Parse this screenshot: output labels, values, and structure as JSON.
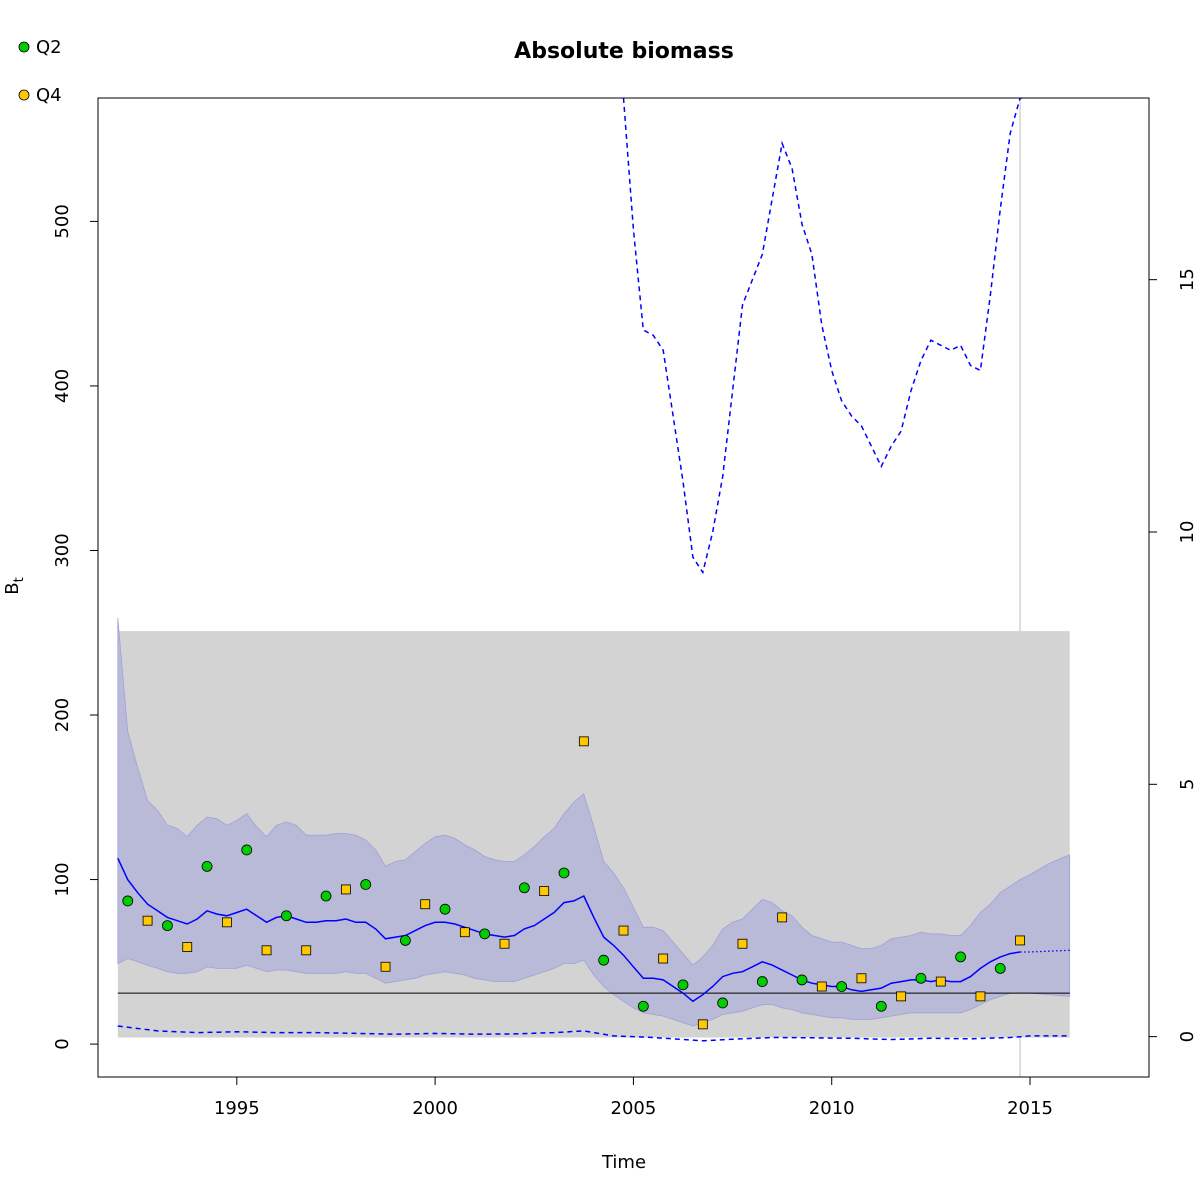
{
  "chart_data": {
    "type": "line",
    "title": "Absolute biomass",
    "xlabel": "Time",
    "ylabel": "B",
    "ylabel_subscript": "t",
    "xlim": [
      1991.5,
      2018.0
    ],
    "ylim": [
      -20,
      575
    ],
    "y2lim": [
      -0.8,
      18.6
    ],
    "x_ticks": [
      1995,
      2000,
      2005,
      2010,
      2015
    ],
    "y_ticks": [
      0,
      100,
      200,
      300,
      400,
      500
    ],
    "y2_ticks": [
      0,
      5,
      10,
      15
    ],
    "legend": {
      "placement": "top-left-outside",
      "entries": [
        {
          "label": "Q2",
          "color": "#00cd00",
          "shape": "circle"
        },
        {
          "label": "Q4",
          "color": "#ffc800",
          "shape": "square"
        }
      ]
    },
    "colors": {
      "biomass_line": "#0000ff",
      "ci_band": "#b6b6d8",
      "prior_region": "#d3d3d3",
      "reference_line": "#000000",
      "vline": "#d3d3d3"
    },
    "prior_region": {
      "x": [
        1992.0,
        2016.0
      ],
      "y": [
        4,
        251
      ]
    },
    "reference_line_y": 31,
    "vline_x": 2014.75,
    "series": [
      {
        "name": "Q2",
        "kind": "points",
        "x": [
          1992.25,
          1993.25,
          1994.25,
          1995.25,
          1996.25,
          1997.25,
          1998.25,
          1999.25,
          2000.25,
          2001.25,
          2002.25,
          2003.25,
          2004.25,
          2005.25,
          2006.25,
          2007.25,
          2008.25,
          2009.25,
          2010.25,
          2011.25,
          2012.25,
          2013.25,
          2014.25
        ],
        "values": [
          87,
          72,
          108,
          118,
          78,
          90,
          97,
          63,
          82,
          67,
          95,
          104,
          51,
          23,
          36,
          25,
          38,
          39,
          35,
          23,
          40,
          53,
          46
        ]
      },
      {
        "name": "Q4",
        "kind": "points",
        "x": [
          1992.75,
          1993.75,
          1994.75,
          1995.75,
          1996.75,
          1997.75,
          1998.75,
          1999.75,
          2000.75,
          2001.75,
          2002.75,
          2003.75,
          2004.75,
          2005.75,
          2006.75,
          2007.75,
          2008.75,
          2009.75,
          2010.75,
          2011.75,
          2012.75,
          2013.75,
          2014.75
        ],
        "values": [
          75,
          59,
          74,
          57,
          57,
          94,
          47,
          85,
          68,
          61,
          93,
          184,
          69,
          52,
          12,
          61,
          77,
          35,
          40,
          29,
          38,
          29,
          63
        ]
      },
      {
        "kind": "estimate",
        "x": [
          1992.0,
          1992.25,
          1992.5,
          1992.75,
          1993.0,
          1993.25,
          1993.5,
          1993.75,
          1994.0,
          1994.25,
          1994.5,
          1994.75,
          1995.0,
          1995.25,
          1995.5,
          1995.75,
          1996.0,
          1996.25,
          1996.5,
          1996.75,
          1997.0,
          1997.25,
          1997.5,
          1997.75,
          1998.0,
          1998.25,
          1998.5,
          1998.75,
          1999.0,
          1999.25,
          1999.5,
          1999.75,
          2000.0,
          2000.25,
          2000.5,
          2000.75,
          2001.0,
          2001.25,
          2001.5,
          2001.75,
          2002.0,
          2002.25,
          2002.5,
          2002.75,
          2003.0,
          2003.25,
          2003.5,
          2003.75,
          2004.0,
          2004.25,
          2004.5,
          2004.75,
          2005.0,
          2005.25,
          2005.5,
          2005.75,
          2006.0,
          2006.25,
          2006.5,
          2006.75,
          2007.0,
          2007.25,
          2007.5,
          2007.75,
          2008.0,
          2008.25,
          2008.5,
          2008.75,
          2009.0,
          2009.25,
          2009.5,
          2009.75,
          2010.0,
          2010.25,
          2010.5,
          2010.75,
          2011.0,
          2011.25,
          2011.5,
          2011.75,
          2012.0,
          2012.25,
          2012.5,
          2012.75,
          2013.0,
          2013.25,
          2013.5,
          2013.75,
          2014.0,
          2014.25,
          2014.5,
          2014.75
        ],
        "values": [
          113,
          100,
          92,
          85,
          81,
          77,
          75,
          73,
          76,
          81,
          79,
          78,
          80,
          82,
          78,
          74,
          77,
          78,
          76,
          74,
          74,
          75,
          75,
          76,
          74,
          74,
          70,
          64,
          65,
          66,
          69,
          72,
          74,
          74,
          73,
          71,
          69,
          67,
          66,
          65,
          66,
          70,
          72,
          76,
          80,
          86,
          87,
          90,
          77,
          65,
          60,
          54,
          47,
          40,
          40,
          39,
          35,
          31,
          26,
          30,
          35,
          41,
          43,
          44,
          47,
          50,
          48,
          45,
          42,
          39,
          37,
          36,
          35,
          35,
          33,
          32,
          33,
          34,
          37,
          38,
          39,
          39,
          38,
          39,
          38,
          38,
          41,
          46,
          50,
          53,
          55,
          56
        ]
      },
      {
        "kind": "ci_lower",
        "x": [
          1992.0,
          1992.25,
          1992.5,
          1992.75,
          1993.0,
          1993.25,
          1993.5,
          1993.75,
          1994.0,
          1994.25,
          1994.5,
          1994.75,
          1995.0,
          1995.25,
          1995.5,
          1995.75,
          1996.0,
          1996.25,
          1996.5,
          1996.75,
          1997.0,
          1997.25,
          1997.5,
          1997.75,
          1998.0,
          1998.25,
          1998.5,
          1998.75,
          1999.0,
          1999.25,
          1999.5,
          1999.75,
          2000.0,
          2000.25,
          2000.5,
          2000.75,
          2001.0,
          2001.25,
          2001.5,
          2001.75,
          2002.0,
          2002.25,
          2002.5,
          2002.75,
          2003.0,
          2003.25,
          2003.5,
          2003.75,
          2004.0,
          2004.25,
          2004.5,
          2004.75,
          2005.0,
          2005.25,
          2005.5,
          2005.75,
          2006.0,
          2006.25,
          2006.5,
          2006.75,
          2007.0,
          2007.25,
          2007.5,
          2007.75,
          2008.0,
          2008.25,
          2008.5,
          2008.75,
          2009.0,
          2009.25,
          2009.5,
          2009.75,
          2010.0,
          2010.25,
          2010.5,
          2010.75,
          2011.0,
          2011.25,
          2011.5,
          2011.75,
          2012.0,
          2012.25,
          2012.5,
          2012.75,
          2013.0,
          2013.25,
          2013.5,
          2013.75,
          2014.0,
          2014.25,
          2014.5,
          2014.75,
          2015.0,
          2015.5,
          2016.0
        ],
        "values": [
          49,
          52,
          50,
          48,
          46,
          44,
          43,
          43,
          44,
          47,
          46,
          46,
          46,
          48,
          46,
          44,
          45,
          45,
          44,
          43,
          43,
          43,
          43,
          44,
          43,
          43,
          40,
          37,
          38,
          39,
          40,
          42,
          43,
          44,
          43,
          42,
          40,
          39,
          38,
          38,
          38,
          40,
          42,
          44,
          46,
          49,
          49,
          51,
          42,
          35,
          30,
          26,
          22,
          19,
          18,
          17,
          15,
          13,
          11,
          13,
          15,
          18,
          19,
          20,
          22,
          24,
          24,
          22,
          21,
          19,
          18,
          17,
          16,
          16,
          15,
          15,
          15,
          16,
          17,
          18,
          19,
          19,
          19,
          19,
          19,
          19,
          21,
          24,
          27,
          29,
          31,
          31,
          31,
          30,
          29
        ]
      },
      {
        "kind": "ci_upper",
        "x": [
          1992.0,
          1992.25,
          1992.5,
          1992.75,
          1993.0,
          1993.25,
          1993.5,
          1993.75,
          1994.0,
          1994.25,
          1994.5,
          1994.75,
          1995.0,
          1995.25,
          1995.5,
          1995.75,
          1996.0,
          1996.25,
          1996.5,
          1996.75,
          1997.0,
          1997.25,
          1997.5,
          1997.75,
          1998.0,
          1998.25,
          1998.5,
          1998.75,
          1999.0,
          1999.25,
          1999.5,
          1999.75,
          2000.0,
          2000.25,
          2000.5,
          2000.75,
          2001.0,
          2001.25,
          2001.5,
          2001.75,
          2002.0,
          2002.25,
          2002.5,
          2002.75,
          2003.0,
          2003.25,
          2003.5,
          2003.75,
          2004.0,
          2004.25,
          2004.5,
          2004.75,
          2005.0,
          2005.25,
          2005.5,
          2005.75,
          2006.0,
          2006.25,
          2006.5,
          2006.75,
          2007.0,
          2007.25,
          2007.5,
          2007.75,
          2008.0,
          2008.25,
          2008.5,
          2008.75,
          2009.0,
          2009.25,
          2009.5,
          2009.75,
          2010.0,
          2010.25,
          2010.5,
          2010.75,
          2011.0,
          2011.25,
          2011.5,
          2011.75,
          2012.0,
          2012.25,
          2012.5,
          2012.75,
          2013.0,
          2013.25,
          2013.5,
          2013.75,
          2014.0,
          2014.25,
          2014.5,
          2014.75,
          2015.0,
          2015.5,
          2016.0
        ],
        "values": [
          259,
          190,
          168,
          148,
          142,
          133,
          131,
          126,
          133,
          138,
          137,
          133,
          136,
          140,
          132,
          126,
          133,
          135,
          133,
          127,
          127,
          127,
          128,
          128,
          127,
          124,
          118,
          108,
          111,
          112,
          117,
          122,
          126,
          127,
          125,
          121,
          118,
          114,
          112,
          111,
          111,
          115,
          120,
          126,
          131,
          140,
          147,
          152,
          132,
          111,
          104,
          95,
          83,
          71,
          71,
          69,
          62,
          55,
          48,
          53,
          60,
          70,
          74,
          76,
          82,
          88,
          86,
          81,
          78,
          71,
          66,
          64,
          62,
          62,
          60,
          58,
          58,
          60,
          64,
          65,
          66,
          68,
          67,
          67,
          66,
          66,
          72,
          80,
          85,
          92,
          96,
          100,
          103,
          110,
          115
        ]
      },
      {
        "kind": "forecast",
        "x": [
          2014.75,
          2015.0,
          2015.5,
          2016.0
        ],
        "values": [
          56,
          56,
          56.5,
          57
        ]
      },
      {
        "kind": "secondary_dashed",
        "axis": "right",
        "x": [
          2004.75,
          2005.0,
          2005.25,
          2005.5,
          2005.75,
          2006.0,
          2006.25,
          2006.5,
          2006.75,
          2007.0,
          2007.25,
          2007.5,
          2007.75,
          2008.0,
          2008.25,
          2008.5,
          2008.75,
          2009.0,
          2009.25,
          2009.5,
          2009.75,
          2010.0,
          2010.25,
          2010.5,
          2010.75,
          2011.0,
          2011.25,
          2011.5,
          2011.75,
          2012.0,
          2012.25,
          2012.5,
          2012.75,
          2013.0,
          2013.25,
          2013.5,
          2013.75,
          2014.0,
          2014.25,
          2014.5,
          2014.75,
          2014.9
        ],
        "values": [
          18.6,
          16.0,
          14.0,
          13.9,
          13.6,
          12.3,
          11.0,
          9.5,
          9.2,
          10.0,
          11.1,
          12.8,
          14.5,
          15.0,
          15.5,
          16.6,
          17.7,
          17.2,
          16.1,
          15.5,
          14.1,
          13.2,
          12.6,
          12.3,
          12.1,
          11.7,
          11.3,
          11.7,
          12.0,
          12.8,
          13.4,
          13.8,
          13.7,
          13.6,
          13.7,
          13.3,
          13.2,
          14.7,
          16.4,
          17.9,
          18.6,
          18.6
        ]
      },
      {
        "kind": "secondary_dashed_low",
        "x": [
          1992.0,
          1993.0,
          1994.0,
          1995.0,
          1996.0,
          1997.0,
          1998.0,
          1999.0,
          2000.0,
          2001.0,
          2002.0,
          2003.0,
          2003.75,
          2004.5,
          2005.5,
          2006.75,
          2007.5,
          2008.5,
          2009.5,
          2010.5,
          2011.5,
          2012.5,
          2013.5,
          2014.5,
          2015.0,
          2016.0
        ],
        "values": [
          11,
          8,
          7,
          7.5,
          7,
          7,
          6.5,
          6,
          6.5,
          6,
          6.2,
          7,
          8,
          5,
          4,
          2,
          3,
          4,
          3.8,
          3.5,
          2.8,
          3.5,
          3.2,
          4,
          5,
          5
        ]
      }
    ]
  }
}
